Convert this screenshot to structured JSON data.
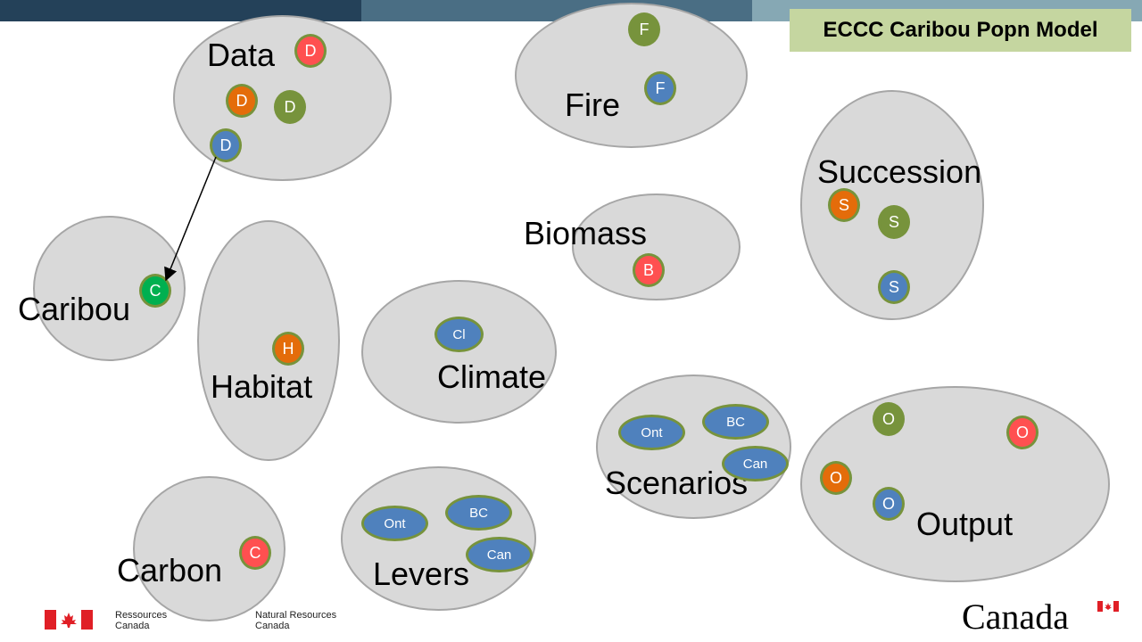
{
  "title": "ECCC Caribou Popn Model",
  "colors": {
    "group_fill": "#d9d9d9",
    "group_border": "#a6a6a6",
    "node_border": "#77933c",
    "red": "#ff5050",
    "orange": "#e46c0a",
    "olive": "#77933c",
    "blue": "#4f81bd",
    "green": "#00b050",
    "title_bg": "#c5d6a0",
    "bar_dark": "#244159",
    "bar_mid": "#4a6e84",
    "bar_light": "#86a8b4"
  },
  "groups": {
    "data": {
      "label": "Data",
      "nodes": [
        "D",
        "D",
        "D",
        "D"
      ]
    },
    "fire": {
      "label": "Fire",
      "nodes": [
        "F",
        "F"
      ]
    },
    "succession": {
      "label": "Succession",
      "nodes": [
        "S",
        "S",
        "S"
      ]
    },
    "biomass": {
      "label": "Biomass",
      "nodes": [
        "B"
      ]
    },
    "caribou": {
      "label": "Caribou",
      "nodes": [
        "C"
      ]
    },
    "habitat": {
      "label": "Habitat",
      "nodes": [
        "H"
      ]
    },
    "climate": {
      "label": "Climate",
      "nodes": [
        "Cl"
      ]
    },
    "scenarios": {
      "label": "Scenarios",
      "nodes": [
        "Ont",
        "BC",
        "Can"
      ]
    },
    "output": {
      "label": "Output",
      "nodes": [
        "O",
        "O",
        "O",
        "O"
      ]
    },
    "carbon": {
      "label": "Carbon",
      "nodes": [
        "C"
      ]
    },
    "levers": {
      "label": "Levers",
      "nodes": [
        "Ont",
        "BC",
        "Can"
      ]
    }
  },
  "footer": {
    "dept_fr_line1": "Ressources",
    "dept_fr_line2": "Canada",
    "dept_en_line1": "Natural Resources",
    "dept_en_line2": "Canada",
    "wordmark": "Canada"
  },
  "icons": {
    "footer_flag": "canada-flag-icon",
    "wordmark_flag": "canada-flag-icon"
  }
}
